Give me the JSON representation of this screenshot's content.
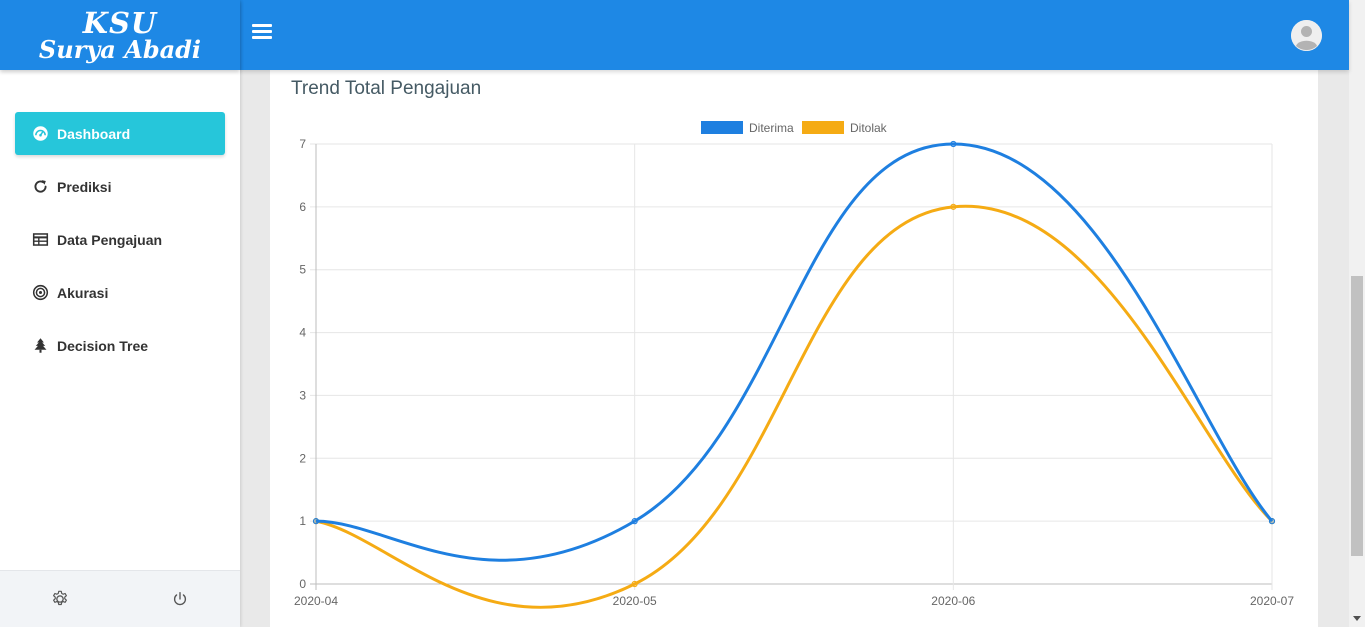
{
  "brand": {
    "line1": "KSU",
    "line2": "Surya Abadi"
  },
  "nav": {
    "items": [
      {
        "label": "Dashboard",
        "icon": "dashboard-icon",
        "active": true
      },
      {
        "label": "Prediksi",
        "icon": "refresh-icon"
      },
      {
        "label": "Data Pengajuan",
        "icon": "table-icon"
      },
      {
        "label": "Akurasi",
        "icon": "target-icon"
      },
      {
        "label": "Decision Tree",
        "icon": "tree-icon"
      }
    ]
  },
  "footer": {
    "settings_icon": "gear-icon",
    "logout_icon": "power-icon"
  },
  "colors": {
    "brand": "#1e88e5",
    "active": "#26c6da",
    "diterima": "#1e7fe0",
    "ditolak": "#f5ab14"
  },
  "card": {
    "title": "Trend Total Pengajuan"
  },
  "chart_data": {
    "type": "line",
    "categories": [
      "2020-04",
      "2020-05",
      "2020-06",
      "2020-07"
    ],
    "series": [
      {
        "name": "Diterima",
        "values": [
          1,
          1,
          7,
          1
        ],
        "color": "#1e7fe0"
      },
      {
        "name": "Ditolak",
        "values": [
          1,
          0,
          6,
          1
        ],
        "color": "#f5ab14"
      }
    ],
    "ylim": [
      0,
      7
    ],
    "yticks": [
      "0",
      "1",
      "2",
      "3",
      "4",
      "5",
      "6",
      "7"
    ],
    "legend": "top-center",
    "grid": true,
    "smooth": true
  }
}
